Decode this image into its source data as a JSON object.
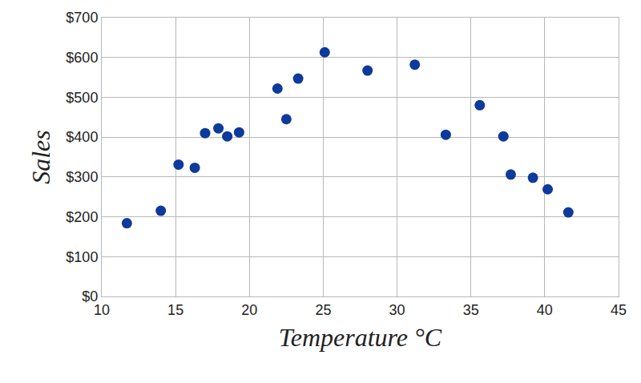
{
  "chart_data": {
    "type": "scatter",
    "x_label": "Temperature °C",
    "y_label": "Sales",
    "x": [
      11.7,
      14.0,
      15.2,
      16.3,
      17.0,
      17.9,
      18.5,
      19.3,
      21.9,
      22.5,
      23.3,
      25.1,
      28.0,
      31.2,
      33.3,
      35.6,
      37.2,
      37.7,
      39.2,
      40.2,
      41.6
    ],
    "values": [
      184,
      215,
      331,
      323,
      410,
      422,
      402,
      412,
      522,
      445,
      547,
      613,
      567,
      582,
      406,
      480,
      402,
      306,
      298,
      269,
      211
    ],
    "color": "#0d3a9c",
    "marker": "circle",
    "xlim": [
      10,
      45
    ],
    "xticks": [
      10,
      15,
      20,
      25,
      30,
      35,
      40,
      45
    ],
    "ylim": [
      0,
      700
    ],
    "yticks": [
      {
        "value": 0,
        "label": "$0"
      },
      {
        "value": 100,
        "label": "$100"
      },
      {
        "value": 200,
        "label": "$200"
      },
      {
        "value": 300,
        "label": "$300"
      },
      {
        "value": 400,
        "label": "$400"
      },
      {
        "value": 500,
        "label": "$500"
      },
      {
        "value": 600,
        "label": "$600"
      },
      {
        "value": 700,
        "label": "$700"
      }
    ],
    "grid": true
  }
}
